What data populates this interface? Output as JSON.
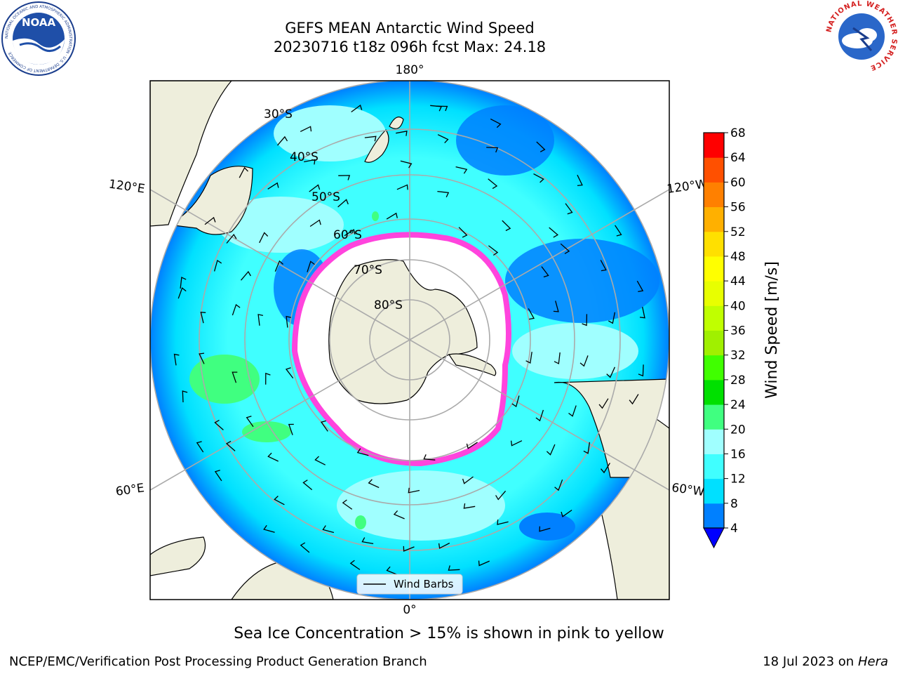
{
  "header": {
    "title_line1": "GEFS MEAN Antarctic Wind Speed",
    "title_line2": "20230716 t18z 096h fcst   Max: 24.18"
  },
  "logos": {
    "left": "NOAA",
    "left_ring_text": "NATIONAL OCEANIC AND ATMOSPHERIC ADMINISTRATION · U.S. DEPARTMENT OF COMMERCE",
    "right_ring_text": "NATIONAL WEATHER SERVICE"
  },
  "map": {
    "longitude_labels": {
      "top": "180°",
      "bottom": "0°",
      "upper_left": "120°E",
      "upper_right": "120°W",
      "lower_left": "60°E",
      "lower_right": "60°W"
    },
    "latitude_labels": [
      "30°S",
      "40°S",
      "50°S",
      "60°S",
      "70°S",
      "80°S"
    ],
    "legend_label": "Wind Barbs",
    "colors": {
      "land": "#eeeedc",
      "ice": "#ffffff",
      "ice_edge": "#ff44dd",
      "gridline": "#aaaaaa"
    }
  },
  "colorbar": {
    "label": "Wind Speed [m/s]",
    "ticks": [
      "4",
      "8",
      "12",
      "16",
      "20",
      "24",
      "28",
      "32",
      "36",
      "40",
      "44",
      "48",
      "52",
      "56",
      "60",
      "64",
      "68"
    ],
    "colors": [
      "#0080ff",
      "#00e0ff",
      "#40ffff",
      "#a0ffff",
      "#40ff80",
      "#00e000",
      "#40ff00",
      "#a0f000",
      "#c0ff00",
      "#e8ff00",
      "#ffff00",
      "#ffe000",
      "#ffb000",
      "#ff8000",
      "#ff5000",
      "#ff0000"
    ],
    "under_color": "#0000ff"
  },
  "caption": "Sea Ice Concentration > 15% is shown in pink to yellow",
  "footer": {
    "left": "NCEP/EMC/Verification Post Processing Product Generation Branch",
    "right_prefix": "18 Jul 2023 on ",
    "right_host": "Hera"
  }
}
